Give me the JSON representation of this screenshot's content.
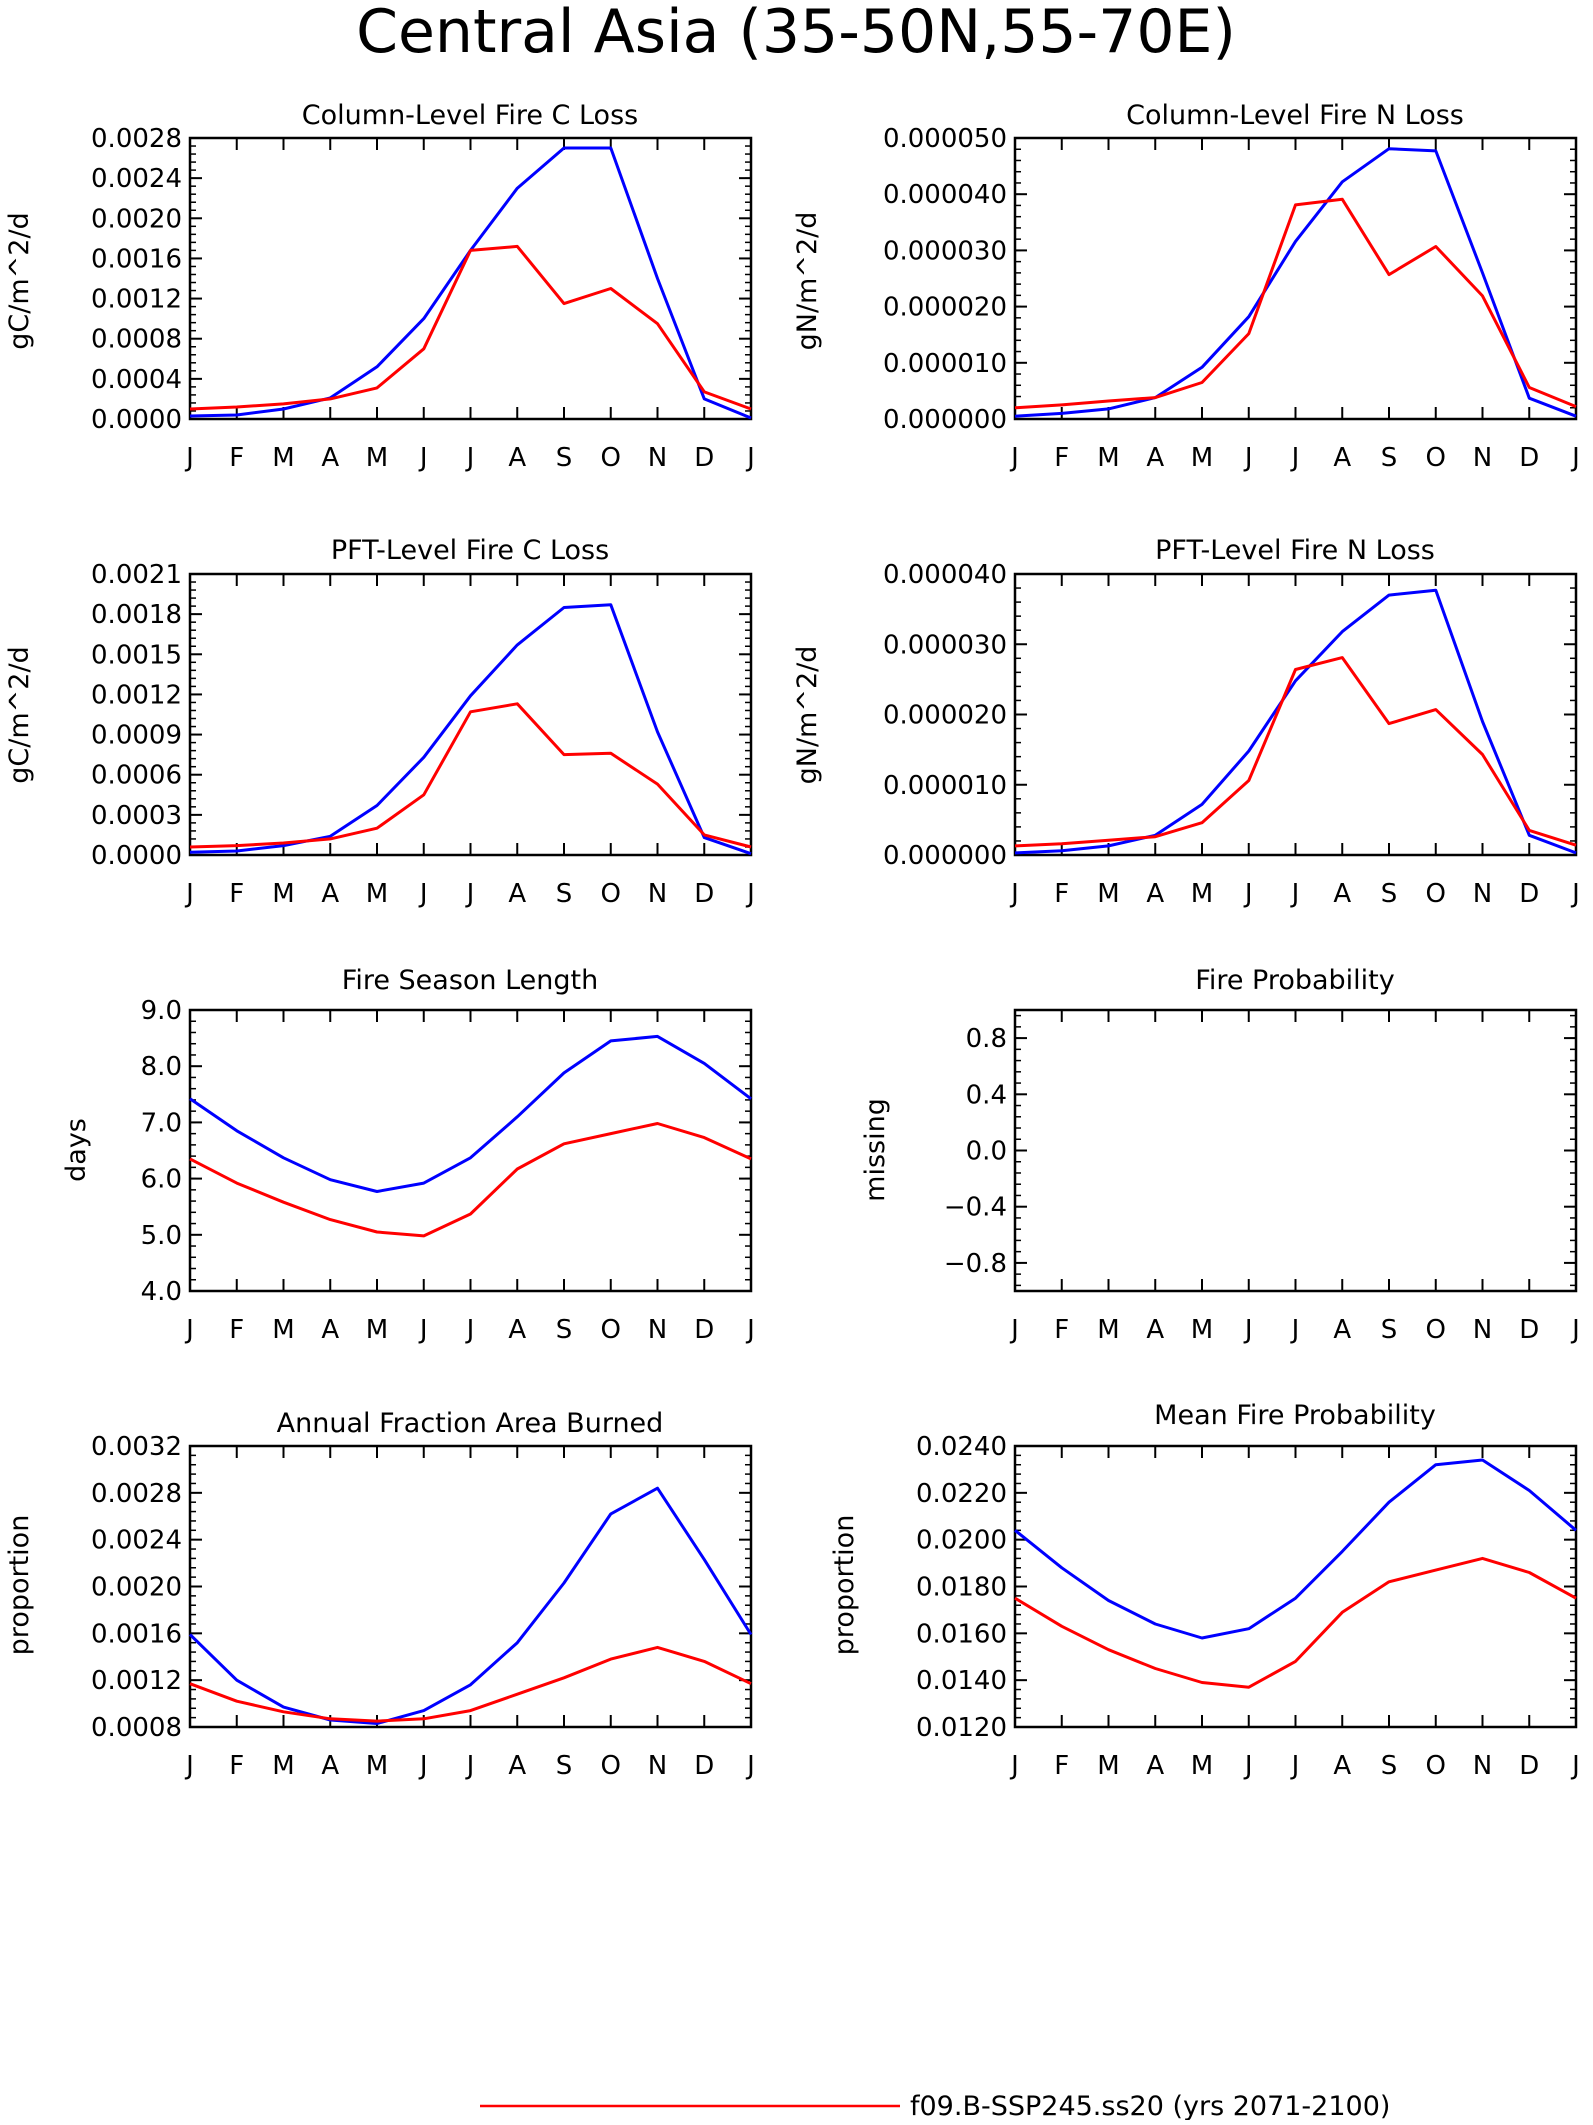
{
  "page_title": "Central Asia (35-50N,55-70E)",
  "colors": {
    "blue": "#0000ff",
    "red": "#ff0000",
    "axis": "#000000"
  },
  "legend": {
    "red_label": "f09.B-SSP245.ss20 (yrs 2071-2100)"
  },
  "chart_data": [
    {
      "type": "line",
      "title": "Column-Level Fire C Loss",
      "xlabel": "",
      "ylabel": "gC/m^2/d",
      "categories": [
        "J",
        "F",
        "M",
        "A",
        "M",
        "J",
        "J",
        "A",
        "S",
        "O",
        "N",
        "D",
        "J"
      ],
      "ylim": [
        0,
        0.0028
      ],
      "yticks": [
        "0.0000",
        "0.0004",
        "0.0008",
        "0.0012",
        "0.0016",
        "0.0020",
        "0.0024",
        "0.0028"
      ],
      "series": [
        {
          "color": "blue",
          "values": [
            3e-05,
            4e-05,
            0.0001,
            0.00021,
            0.00052,
            0.001,
            0.00168,
            0.0023,
            0.0027,
            0.0027,
            0.0014,
            0.0002,
            1e-05
          ]
        },
        {
          "color": "red",
          "values": [
            0.0001,
            0.00012,
            0.00015,
            0.0002,
            0.00031,
            0.0007,
            0.00168,
            0.00172,
            0.00115,
            0.0013,
            0.00095,
            0.00027,
            0.0001
          ]
        }
      ]
    },
    {
      "type": "line",
      "title": "Column-Level Fire N Loss",
      "xlabel": "",
      "ylabel": "gN/m^2/d",
      "categories": [
        "J",
        "F",
        "M",
        "A",
        "M",
        "J",
        "J",
        "A",
        "S",
        "O",
        "N",
        "D",
        "J"
      ],
      "ylim": [
        0,
        5e-05
      ],
      "yticks": [
        "0.000000",
        "0.000010",
        "0.000020",
        "0.000030",
        "0.000040",
        "0.000050"
      ],
      "series": [
        {
          "color": "blue",
          "values": [
            5e-07,
            1e-06,
            1.8e-06,
            3.8e-06,
            9.2e-06,
            1.82e-05,
            3.16e-05,
            4.22e-05,
            4.81e-05,
            4.77e-05,
            2.6e-05,
            3.7e-06,
            5e-07
          ]
        },
        {
          "color": "red",
          "values": [
            2e-06,
            2.5e-06,
            3.2e-06,
            3.8e-06,
            6.5e-06,
            1.52e-05,
            3.81e-05,
            3.91e-05,
            2.57e-05,
            3.07e-05,
            2.19e-05,
            5.6e-06,
            2.2e-06
          ]
        }
      ]
    },
    {
      "type": "line",
      "title": "PFT-Level Fire C Loss",
      "xlabel": "",
      "ylabel": "gC/m^2/d",
      "categories": [
        "J",
        "F",
        "M",
        "A",
        "M",
        "J",
        "J",
        "A",
        "S",
        "O",
        "N",
        "D",
        "J"
      ],
      "ylim": [
        0,
        0.0021
      ],
      "yticks": [
        "0.0000",
        "0.0003",
        "0.0006",
        "0.0009",
        "0.0012",
        "0.0015",
        "0.0018",
        "0.0021"
      ],
      "series": [
        {
          "color": "blue",
          "values": [
            2e-05,
            3e-05,
            7e-05,
            0.00014,
            0.00037,
            0.00073,
            0.00119,
            0.00157,
            0.00185,
            0.00187,
            0.00092,
            0.00013,
            1e-05
          ]
        },
        {
          "color": "red",
          "values": [
            6e-05,
            7e-05,
            9e-05,
            0.00012,
            0.0002,
            0.00045,
            0.00107,
            0.00113,
            0.00075,
            0.00076,
            0.00053,
            0.00015,
            6e-05
          ]
        }
      ]
    },
    {
      "type": "line",
      "title": "PFT-Level Fire N Loss",
      "xlabel": "",
      "ylabel": "gN/m^2/d",
      "categories": [
        "J",
        "F",
        "M",
        "A",
        "M",
        "J",
        "J",
        "A",
        "S",
        "O",
        "N",
        "D",
        "J"
      ],
      "ylim": [
        0,
        4e-05
      ],
      "yticks": [
        "0.000000",
        "0.000010",
        "0.000020",
        "0.000030",
        "0.000040"
      ],
      "series": [
        {
          "color": "blue",
          "values": [
            3e-07,
            6e-07,
            1.3e-06,
            2.8e-06,
            7.2e-06,
            1.48e-05,
            2.48e-05,
            3.18e-05,
            3.7e-05,
            3.77e-05,
            1.9e-05,
            2.8e-06,
            3e-07
          ]
        },
        {
          "color": "red",
          "values": [
            1.3e-06,
            1.6e-06,
            2.1e-06,
            2.6e-06,
            4.6e-06,
            1.06e-05,
            2.64e-05,
            2.81e-05,
            1.87e-05,
            2.07e-05,
            1.43e-05,
            3.5e-06,
            1.4e-06
          ]
        }
      ]
    },
    {
      "type": "line",
      "title": "Fire Season Length",
      "xlabel": "",
      "ylabel": "days",
      "categories": [
        "J",
        "F",
        "M",
        "A",
        "M",
        "J",
        "J",
        "A",
        "S",
        "O",
        "N",
        "D",
        "J"
      ],
      "ylim": [
        4.0,
        9.0
      ],
      "yticks": [
        "4.0",
        "5.0",
        "6.0",
        "7.0",
        "8.0",
        "9.0"
      ],
      "series": [
        {
          "color": "blue",
          "values": [
            7.42,
            6.85,
            6.37,
            5.98,
            5.77,
            5.92,
            6.37,
            7.1,
            7.88,
            8.45,
            8.53,
            8.05,
            7.42
          ]
        },
        {
          "color": "red",
          "values": [
            6.35,
            5.92,
            5.58,
            5.27,
            5.05,
            4.98,
            5.37,
            6.17,
            6.62,
            6.8,
            6.98,
            6.73,
            6.35
          ]
        }
      ]
    },
    {
      "type": "line",
      "title": "Fire Probability",
      "xlabel": "",
      "ylabel": "missing",
      "categories": [
        "J",
        "F",
        "M",
        "A",
        "M",
        "J",
        "J",
        "A",
        "S",
        "O",
        "N",
        "D",
        "J"
      ],
      "ylim": [
        -1.0,
        1.0
      ],
      "yticks": [
        "-0.8",
        "-0.4",
        "0.0",
        "0.4",
        "0.8"
      ],
      "series": []
    },
    {
      "type": "line",
      "title": "Annual Fraction Area Burned",
      "xlabel": "",
      "ylabel": "proportion",
      "categories": [
        "J",
        "F",
        "M",
        "A",
        "M",
        "J",
        "J",
        "A",
        "S",
        "O",
        "N",
        "D",
        "J"
      ],
      "ylim": [
        0.0008,
        0.0032
      ],
      "yticks": [
        "0.0008",
        "0.0012",
        "0.0016",
        "0.0020",
        "0.0024",
        "0.0028",
        "0.0032"
      ],
      "series": [
        {
          "color": "blue",
          "values": [
            0.00159,
            0.0012,
            0.00097,
            0.00086,
            0.00083,
            0.00094,
            0.00116,
            0.00152,
            0.00203,
            0.00262,
            0.00284,
            0.00223,
            0.00159
          ]
        },
        {
          "color": "red",
          "values": [
            0.00117,
            0.00102,
            0.00093,
            0.00087,
            0.00085,
            0.00087,
            0.00094,
            0.00108,
            0.00122,
            0.00138,
            0.00148,
            0.00136,
            0.00117
          ]
        }
      ]
    },
    {
      "type": "line",
      "title": "Mean Fire Probability",
      "xlabel": "",
      "ylabel": "proportion",
      "categories": [
        "J",
        "F",
        "M",
        "A",
        "M",
        "J",
        "J",
        "A",
        "S",
        "O",
        "N",
        "D",
        "J"
      ],
      "ylim": [
        0.012,
        0.024
      ],
      "yticks": [
        "0.0120",
        "0.0140",
        "0.0160",
        "0.0180",
        "0.0200",
        "0.0220",
        "0.0240"
      ],
      "series": [
        {
          "color": "blue",
          "values": [
            0.0204,
            0.0188,
            0.0174,
            0.0164,
            0.0158,
            0.0162,
            0.0175,
            0.0195,
            0.0216,
            0.0232,
            0.0234,
            0.0221,
            0.0204
          ]
        },
        {
          "color": "red",
          "values": [
            0.0175,
            0.0163,
            0.0153,
            0.0145,
            0.0139,
            0.0137,
            0.0148,
            0.0169,
            0.0182,
            0.0187,
            0.0192,
            0.0186,
            0.0175
          ]
        }
      ]
    }
  ]
}
